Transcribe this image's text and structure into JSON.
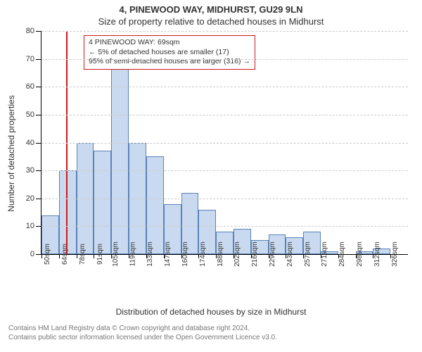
{
  "title_main": "4, PINEWOOD WAY, MIDHURST, GU29 9LN",
  "title_sub": "Size of property relative to detached houses in Midhurst",
  "x_axis_label": "Distribution of detached houses by size in Midhurst",
  "y_axis_label": "Number of detached properties",
  "footer_line1": "Contains HM Land Registry data © Crown copyright and database right 2024.",
  "footer_line2": "Contains public sector information licensed under the Open Government Licence v3.0.",
  "annotation": {
    "line1": "4 PINEWOOD WAY: 69sqm",
    "line2": "← 5% of detached houses are smaller (17)",
    "line3": "95% of semi-detached houses are larger (316) →"
  },
  "chart": {
    "type": "histogram",
    "ylim": [
      0,
      80
    ],
    "ytick_step": 10,
    "bar_fill": "#c9daf0",
    "bar_border": "#5a82b8",
    "grid_color": "#cccccc",
    "background_color": "#ffffff",
    "reference_color": "#d01818",
    "reference_x_index": 1.4,
    "categories": [
      "50sqm",
      "64sqm",
      "78sqm",
      "91sqm",
      "105sqm",
      "119sqm",
      "133sqm",
      "147sqm",
      "160sqm",
      "174sqm",
      "188sqm",
      "202sqm",
      "216sqm",
      "229sqm",
      "243sqm",
      "257sqm",
      "271sqm",
      "284sqm",
      "298sqm",
      "312sqm",
      "326sqm"
    ],
    "values": [
      14,
      30,
      40,
      37,
      67,
      40,
      35,
      18,
      22,
      16,
      8,
      9,
      5,
      7,
      6,
      8,
      1,
      0,
      1,
      2,
      0
    ],
    "title_fontsize": 13,
    "label_fontsize": 12,
    "tick_fontsize": 11
  }
}
